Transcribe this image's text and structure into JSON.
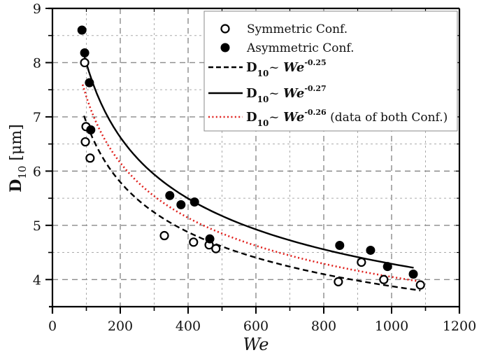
{
  "chart_data": {
    "type": "scatter",
    "title": "",
    "xlabel": "We",
    "ylabel_main": "D",
    "ylabel_sub": "10",
    "ylabel_unit": " [μm]",
    "xlim": [
      0,
      1200
    ],
    "ylim": [
      3.5,
      9
    ],
    "x_ticks": [
      0,
      200,
      400,
      600,
      800,
      1000,
      1200
    ],
    "x_tick_labels": [
      "0",
      "200",
      "400",
      "600",
      "800",
      "1000",
      "1200"
    ],
    "x_minor_ticks": [
      100,
      300,
      500,
      700,
      900,
      1100
    ],
    "y_ticks": [
      4,
      5,
      6,
      7,
      8,
      9
    ],
    "y_tick_labels": [
      "4",
      "5",
      "6",
      "7",
      "8",
      "9"
    ],
    "y_minor_ticks": [
      4.5,
      5.5,
      6.5,
      7.5,
      8.5
    ],
    "grid": true,
    "legend_position": "top-right",
    "series": [
      {
        "name": "Symmetric Conf.",
        "kind": "scatter",
        "marker": "open-circle",
        "color": "#000000",
        "x": [
          95,
          99,
          97,
          111,
          330,
          416,
          462,
          482,
          843,
          911,
          977,
          1085
        ],
        "y": [
          8.0,
          6.82,
          6.54,
          6.24,
          4.81,
          4.69,
          4.64,
          4.57,
          3.96,
          4.32,
          4.0,
          3.9
        ]
      },
      {
        "name": "Asymmetric Conf.",
        "kind": "scatter",
        "marker": "filled-circle",
        "color": "#000000",
        "x": [
          87,
          95,
          109,
          113,
          346,
          379,
          419,
          464,
          847,
          938,
          988,
          1064
        ],
        "y": [
          8.6,
          8.18,
          7.63,
          6.76,
          5.55,
          5.38,
          5.43,
          4.75,
          4.63,
          4.54,
          4.24,
          4.1
        ]
      },
      {
        "name": "D10~ We^-0.25",
        "label_main": "D",
        "label_sub": "10",
        "label_tilde": "~ ",
        "label_base": "We",
        "label_exp": "-0.25",
        "label_suffix": "",
        "kind": "fit",
        "style": "dashed",
        "color": "#000000",
        "coef": 21.8,
        "exponent": -0.25,
        "x_range": [
          93,
          1085
        ]
      },
      {
        "name": "D10~ We^-0.27",
        "label_main": "D",
        "label_sub": "10",
        "label_tilde": "~ ",
        "label_base": "We",
        "label_exp": "-0.27",
        "label_suffix": "",
        "kind": "fit",
        "style": "solid",
        "color": "#000000",
        "coef": 27.7,
        "exponent": -0.27,
        "x_range": [
          95,
          1065
        ]
      },
      {
        "name": "D10~ We^-0.26 (data of both Conf.)",
        "label_main": "D",
        "label_sub": "10",
        "label_tilde": "~ ",
        "label_base": "We",
        "label_exp": "-0.26",
        "label_suffix": " (data of both Conf.)",
        "kind": "fit",
        "style": "dotted",
        "color": "#e0201c",
        "coef": 24.4,
        "exponent": -0.26,
        "x_range": [
          89,
          1085
        ]
      }
    ]
  }
}
